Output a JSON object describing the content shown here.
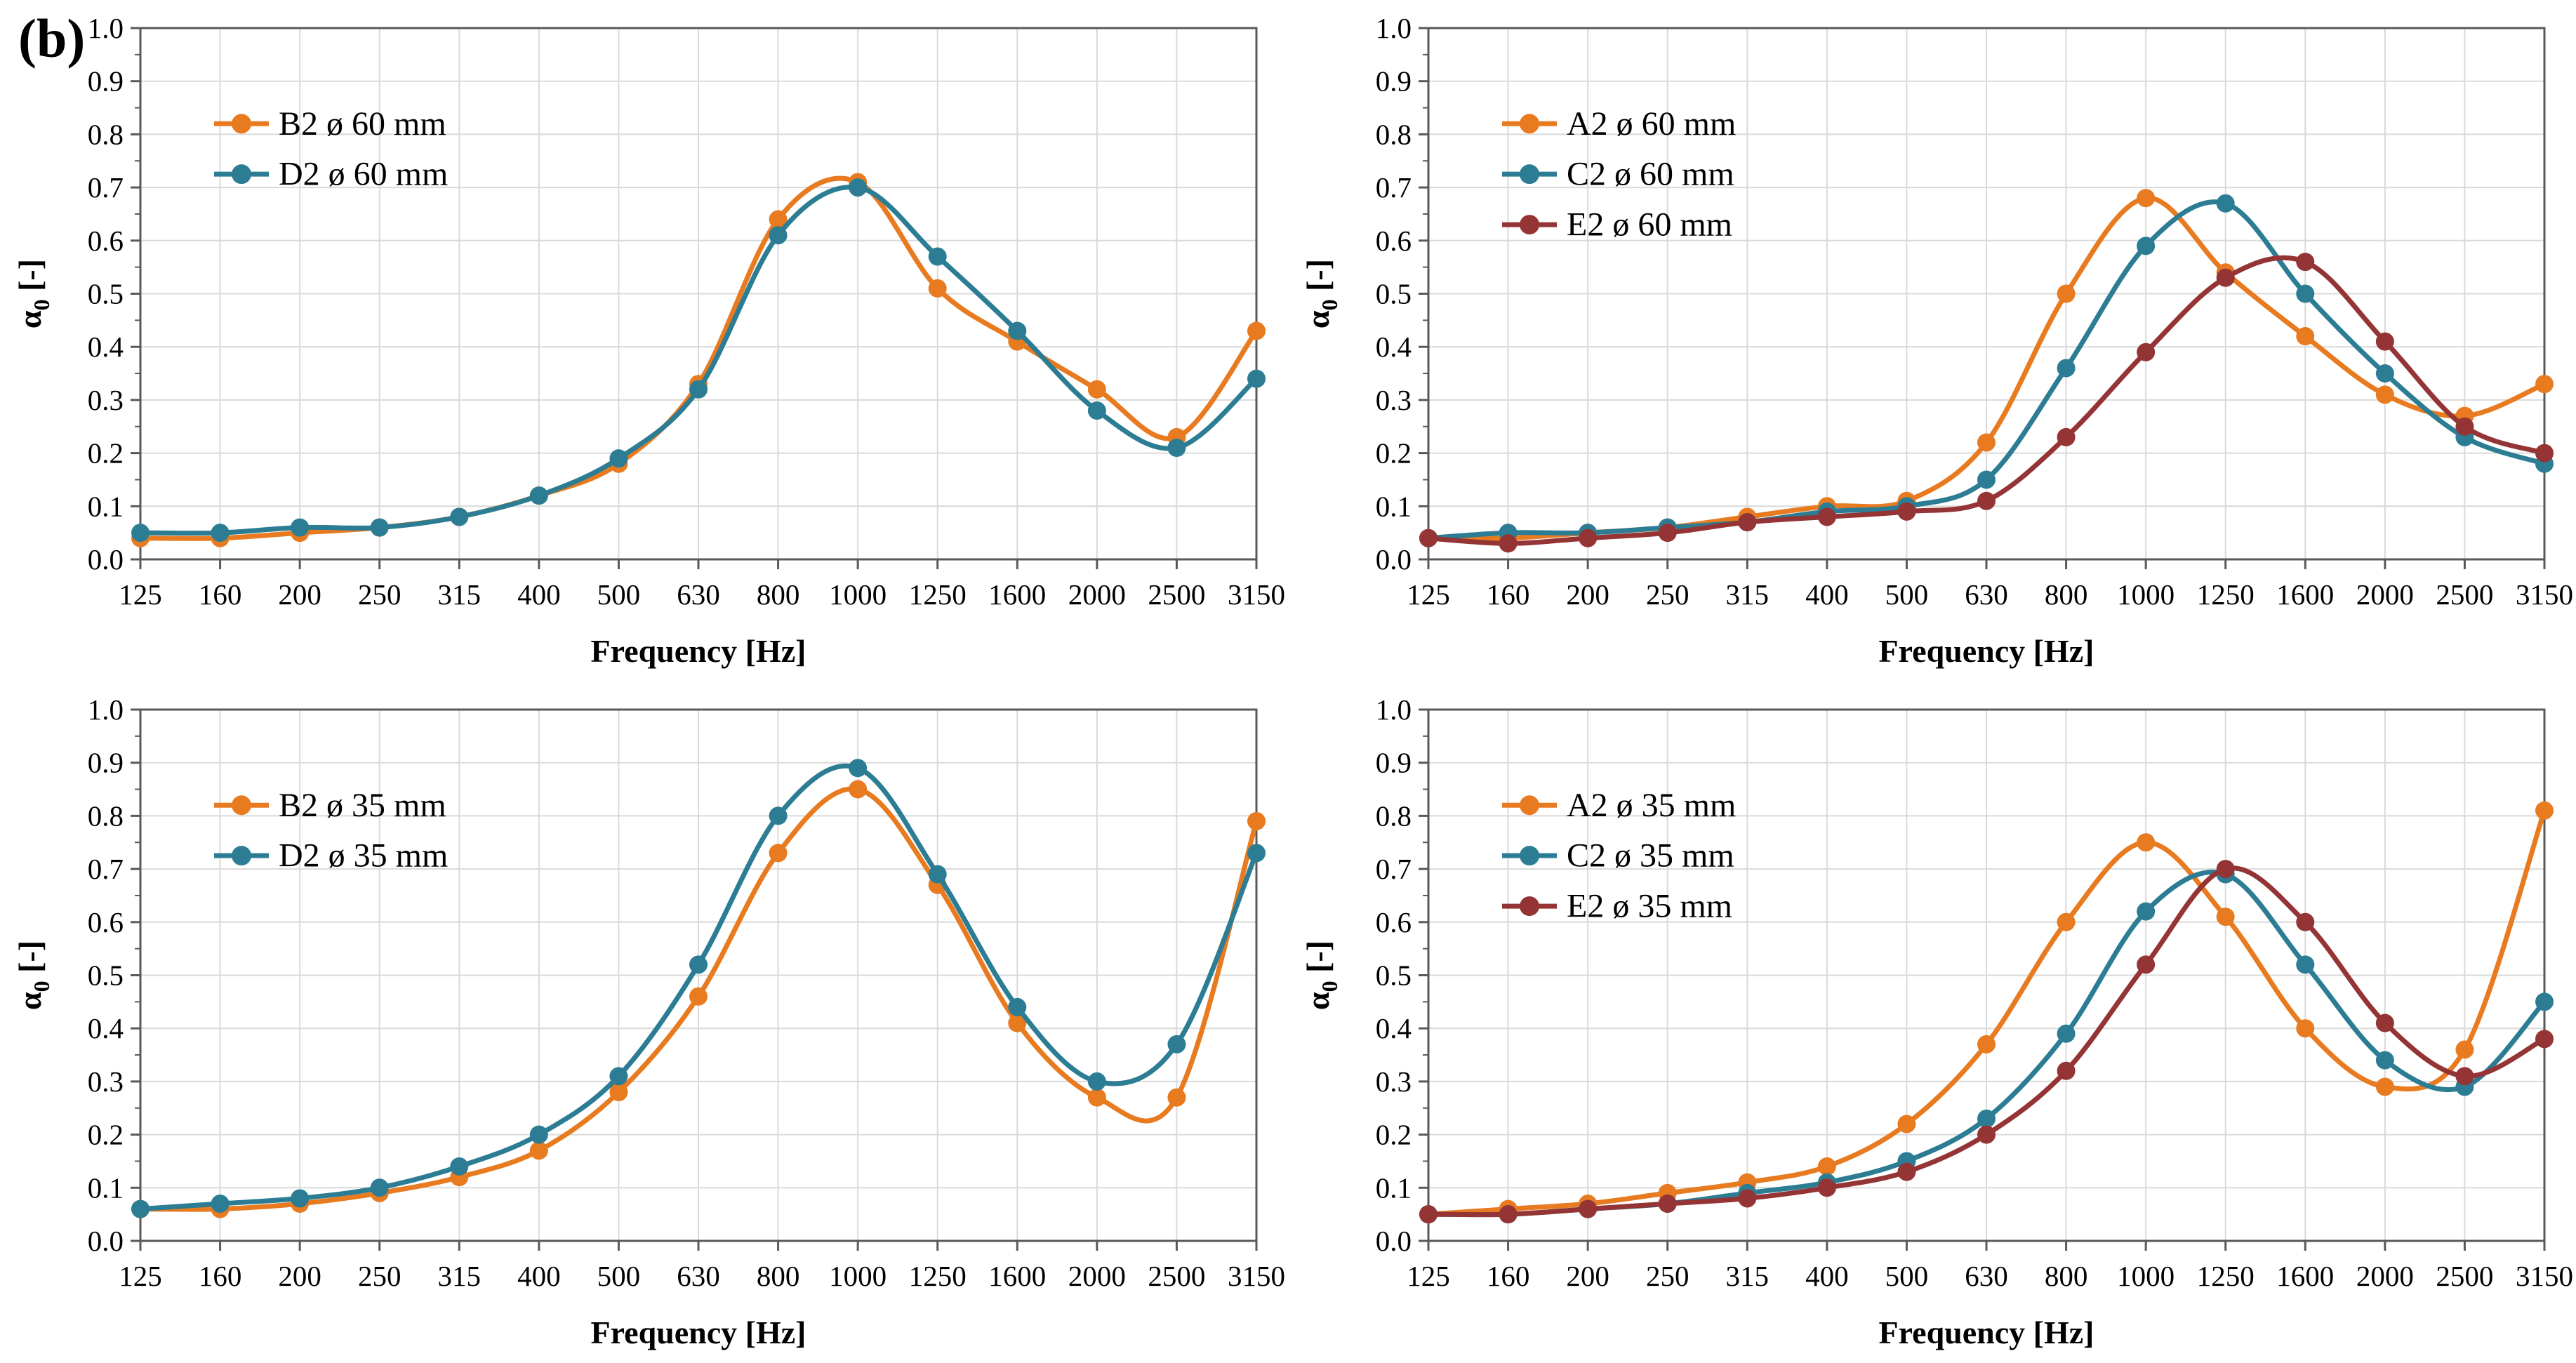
{
  "figure": {
    "panel_label": "(b)"
  },
  "colors": {
    "orange": "#E87A20",
    "teal": "#2C7D94",
    "maroon": "#943435",
    "axis": "#595959",
    "grid": "#DADADA",
    "text": "#000000"
  },
  "chart_data": [
    {
      "id": "top-left",
      "type": "line",
      "title": "",
      "xlabel": "Frequency [Hz]",
      "ylabel": "α0 [-]",
      "ylim": [
        0.0,
        1.0
      ],
      "ytick_step": 0.1,
      "ytick_labels": [
        "0.0",
        "0.1",
        "0.2",
        "0.3",
        "0.4",
        "0.5",
        "0.6",
        "0.7",
        "0.8",
        "0.9",
        "1.0"
      ],
      "grid": true,
      "legend_position": "upper-left",
      "categories": [
        "125",
        "160",
        "200",
        "250",
        "315",
        "400",
        "500",
        "630",
        "800",
        "1000",
        "1250",
        "1600",
        "2000",
        "2500",
        "3150"
      ],
      "series": [
        {
          "name": "B2 ø 60 mm",
          "color_key": "orange",
          "values": [
            0.04,
            0.04,
            0.05,
            0.06,
            0.08,
            0.12,
            0.18,
            0.33,
            0.64,
            0.71,
            0.51,
            0.41,
            0.32,
            0.23,
            0.43
          ]
        },
        {
          "name": "D2 ø 60 mm",
          "color_key": "teal",
          "values": [
            0.05,
            0.05,
            0.06,
            0.06,
            0.08,
            0.12,
            0.19,
            0.32,
            0.61,
            0.7,
            0.57,
            0.43,
            0.28,
            0.21,
            0.34
          ]
        }
      ]
    },
    {
      "id": "top-right",
      "type": "line",
      "title": "",
      "xlabel": "Frequency [Hz]",
      "ylabel": "α0 [-]",
      "ylim": [
        0.0,
        1.0
      ],
      "ytick_step": 0.1,
      "ytick_labels": [
        "0.0",
        "0.1",
        "0.2",
        "0.3",
        "0.4",
        "0.5",
        "0.6",
        "0.7",
        "0.8",
        "0.9",
        "1.0"
      ],
      "grid": true,
      "legend_position": "upper-left",
      "categories": [
        "125",
        "160",
        "200",
        "250",
        "315",
        "400",
        "500",
        "630",
        "800",
        "1000",
        "1250",
        "1600",
        "2000",
        "2500",
        "3150"
      ],
      "series": [
        {
          "name": "A2 ø 60 mm",
          "color_key": "orange",
          "values": [
            0.04,
            0.04,
            0.05,
            0.06,
            0.08,
            0.1,
            0.11,
            0.22,
            0.5,
            0.68,
            0.54,
            0.42,
            0.31,
            0.27,
            0.33
          ]
        },
        {
          "name": "C2 ø 60 mm",
          "color_key": "teal",
          "values": [
            0.04,
            0.05,
            0.05,
            0.06,
            0.07,
            0.09,
            0.1,
            0.15,
            0.36,
            0.59,
            0.67,
            0.5,
            0.35,
            0.23,
            0.18
          ]
        },
        {
          "name": "E2 ø 60 mm",
          "color_key": "maroon",
          "values": [
            0.04,
            0.03,
            0.04,
            0.05,
            0.07,
            0.08,
            0.09,
            0.11,
            0.23,
            0.39,
            0.53,
            0.56,
            0.41,
            0.25,
            0.2
          ]
        }
      ]
    },
    {
      "id": "bottom-left",
      "type": "line",
      "title": "",
      "xlabel": "Frequency [Hz]",
      "ylabel": "α0 [-]",
      "ylim": [
        0.0,
        1.0
      ],
      "ytick_step": 0.1,
      "ytick_labels": [
        "0.0",
        "0.1",
        "0.2",
        "0.3",
        "0.4",
        "0.5",
        "0.6",
        "0.7",
        "0.8",
        "0.9",
        "1.0"
      ],
      "grid": true,
      "legend_position": "upper-left",
      "categories": [
        "125",
        "160",
        "200",
        "250",
        "315",
        "400",
        "500",
        "630",
        "800",
        "1000",
        "1250",
        "1600",
        "2000",
        "2500",
        "3150"
      ],
      "series": [
        {
          "name": "B2 ø 35 mm",
          "color_key": "orange",
          "values": [
            0.06,
            0.06,
            0.07,
            0.09,
            0.12,
            0.17,
            0.28,
            0.46,
            0.73,
            0.85,
            0.67,
            0.41,
            0.27,
            0.27,
            0.79
          ]
        },
        {
          "name": "D2 ø 35 mm",
          "color_key": "teal",
          "values": [
            0.06,
            0.07,
            0.08,
            0.1,
            0.14,
            0.2,
            0.31,
            0.52,
            0.8,
            0.89,
            0.69,
            0.44,
            0.3,
            0.37,
            0.73
          ]
        }
      ]
    },
    {
      "id": "bottom-right",
      "type": "line",
      "title": "",
      "xlabel": "Frequency [Hz]",
      "ylabel": "α0 [-]",
      "ylim": [
        0.0,
        1.0
      ],
      "ytick_step": 0.1,
      "ytick_labels": [
        "0.0",
        "0.1",
        "0.2",
        "0.3",
        "0.4",
        "0.5",
        "0.6",
        "0.7",
        "0.8",
        "0.9",
        "1.0"
      ],
      "grid": true,
      "legend_position": "upper-left",
      "categories": [
        "125",
        "160",
        "200",
        "250",
        "315",
        "400",
        "500",
        "630",
        "800",
        "1000",
        "1250",
        "1600",
        "2000",
        "2500",
        "3150"
      ],
      "series": [
        {
          "name": "A2 ø 35 mm",
          "color_key": "orange",
          "values": [
            0.05,
            0.06,
            0.07,
            0.09,
            0.11,
            0.14,
            0.22,
            0.37,
            0.6,
            0.75,
            0.61,
            0.4,
            0.29,
            0.36,
            0.81
          ]
        },
        {
          "name": "C2 ø 35 mm",
          "color_key": "teal",
          "values": [
            0.05,
            0.05,
            0.06,
            0.07,
            0.09,
            0.11,
            0.15,
            0.23,
            0.39,
            0.62,
            0.69,
            0.52,
            0.34,
            0.29,
            0.45
          ]
        },
        {
          "name": "E2 ø 35 mm",
          "color_key": "maroon",
          "values": [
            0.05,
            0.05,
            0.06,
            0.07,
            0.08,
            0.1,
            0.13,
            0.2,
            0.32,
            0.52,
            0.7,
            0.6,
            0.41,
            0.31,
            0.38
          ]
        }
      ]
    }
  ]
}
